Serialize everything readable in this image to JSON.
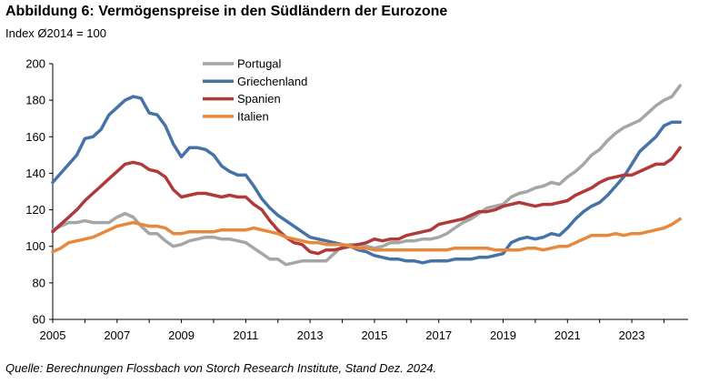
{
  "title": "Abbildung 6: Vermögenspreise in den Südländern der Eurozone",
  "subtitle": "Index Ø2014 = 100",
  "source": "Quelle: Berechnungen Flossbach von Storch Research Institute, Stand Dez. 2024.",
  "chart_data": {
    "type": "line",
    "title": "Abbildung 6: Vermögenspreise in den Südländern der Eurozone",
    "ylabel": "Index Ø2014 = 100",
    "xlabel": "",
    "xlim": [
      2005,
      2024.75
    ],
    "ylim": [
      60,
      200
    ],
    "x_ticks": [
      "2005",
      "2007",
      "2009",
      "2011",
      "2013",
      "2015",
      "2017",
      "2019",
      "2021",
      "2023"
    ],
    "y_ticks": [
      "60",
      "80",
      "100",
      "120",
      "140",
      "160",
      "180",
      "200"
    ],
    "legend_position": "top-center",
    "x": [
      2005.0,
      2005.25,
      2005.5,
      2005.75,
      2006.0,
      2006.25,
      2006.5,
      2006.75,
      2007.0,
      2007.25,
      2007.5,
      2007.75,
      2008.0,
      2008.25,
      2008.5,
      2008.75,
      2009.0,
      2009.25,
      2009.5,
      2009.75,
      2010.0,
      2010.25,
      2010.5,
      2010.75,
      2011.0,
      2011.25,
      2011.5,
      2011.75,
      2012.0,
      2012.25,
      2012.5,
      2012.75,
      2013.0,
      2013.25,
      2013.5,
      2013.75,
      2014.0,
      2014.25,
      2014.5,
      2014.75,
      2015.0,
      2015.25,
      2015.5,
      2015.75,
      2016.0,
      2016.25,
      2016.5,
      2016.75,
      2017.0,
      2017.25,
      2017.5,
      2017.75,
      2018.0,
      2018.25,
      2018.5,
      2018.75,
      2019.0,
      2019.25,
      2019.5,
      2019.75,
      2020.0,
      2020.25,
      2020.5,
      2020.75,
      2021.0,
      2021.25,
      2021.5,
      2021.75,
      2022.0,
      2022.25,
      2022.5,
      2022.75,
      2023.0,
      2023.25,
      2023.5,
      2023.75,
      2024.0,
      2024.25,
      2024.5
    ],
    "series": [
      {
        "name": "Portugal",
        "color": "#a6a6a6",
        "values": [
          109,
          111,
          113,
          113,
          114,
          113,
          113,
          113,
          116,
          118,
          116,
          111,
          107,
          107,
          103,
          100,
          101,
          103,
          104,
          105,
          105,
          104,
          104,
          103,
          102,
          99,
          96,
          93,
          93,
          90,
          91,
          92,
          92,
          92,
          92,
          96,
          100,
          101,
          101,
          100,
          99,
          100,
          102,
          102,
          103,
          103,
          104,
          104,
          105,
          107,
          110,
          113,
          115,
          118,
          121,
          122,
          123,
          127,
          129,
          130,
          132,
          133,
          135,
          134,
          138,
          141,
          145,
          150,
          153,
          158,
          162,
          165,
          167,
          169,
          173,
          177,
          180,
          182,
          188
        ]
      },
      {
        "name": "Griechenland",
        "color": "#4572a7",
        "values": [
          135,
          140,
          145,
          150,
          159,
          160,
          164,
          172,
          176,
          180,
          182,
          181,
          173,
          172,
          166,
          156,
          149,
          154,
          154,
          153,
          150,
          144,
          141,
          139,
          139,
          133,
          126,
          121,
          117,
          114,
          111,
          108,
          105,
          104,
          103,
          102,
          101,
          100,
          98,
          97,
          95,
          94,
          93,
          93,
          92,
          92,
          91,
          92,
          92,
          92,
          93,
          93,
          93,
          94,
          94,
          95,
          96,
          102,
          104,
          105,
          104,
          105,
          107,
          106,
          110,
          115,
          119,
          122,
          124,
          128,
          133,
          138,
          145,
          152,
          156,
          160,
          166,
          168,
          168
        ]
      },
      {
        "name": "Spanien",
        "color": "#b03a3a",
        "values": [
          108,
          112,
          116,
          120,
          125,
          129,
          133,
          137,
          141,
          145,
          146,
          145,
          142,
          141,
          138,
          131,
          127,
          128,
          129,
          129,
          128,
          127,
          128,
          127,
          127,
          123,
          120,
          114,
          109,
          105,
          102,
          101,
          97,
          96,
          98,
          98,
          99,
          100,
          101,
          102,
          104,
          103,
          104,
          104,
          106,
          107,
          108,
          109,
          112,
          113,
          114,
          115,
          117,
          119,
          119,
          120,
          122,
          123,
          124,
          123,
          122,
          123,
          123,
          124,
          125,
          128,
          130,
          132,
          135,
          137,
          138,
          139,
          139,
          141,
          143,
          145,
          145,
          148,
          154
        ]
      },
      {
        "name": "Italien",
        "color": "#e8883a",
        "values": [
          97,
          99,
          102,
          103,
          104,
          105,
          107,
          109,
          111,
          112,
          113,
          112,
          111,
          111,
          110,
          107,
          107,
          108,
          108,
          108,
          108,
          109,
          109,
          109,
          109,
          110,
          109,
          108,
          107,
          105,
          104,
          103,
          102,
          102,
          101,
          101,
          101,
          100,
          99,
          99,
          98,
          98,
          98,
          98,
          98,
          98,
          98,
          98,
          98,
          98,
          99,
          99,
          99,
          99,
          99,
          98,
          98,
          98,
          98,
          99,
          99,
          98,
          99,
          100,
          100,
          102,
          104,
          106,
          106,
          106,
          107,
          106,
          107,
          107,
          108,
          109,
          110,
          112,
          115
        ]
      }
    ]
  }
}
